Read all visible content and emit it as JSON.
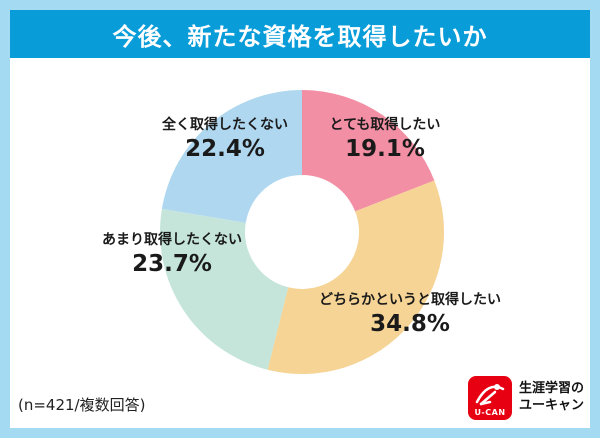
{
  "title_bar": {
    "title": "今後、新たな資格を取得したいか"
  },
  "footnote": "(n=421/複数回答)",
  "brand": {
    "mark_text": "U-CAN",
    "line1": "生涯学習の",
    "line2": "ユーキャン",
    "mark_color": "#e60012"
  },
  "colors": {
    "frame": "#a5dbf2",
    "title_bar": "#089cd8",
    "background": "#ffffff"
  },
  "chart_data": {
    "type": "pie",
    "donut": true,
    "title": "今後、新たな資格を取得したいか",
    "unit": "%",
    "start_angle_deg": 0,
    "direction": "clockwise",
    "legend_position": "labels-around-chart",
    "categories": [
      "とても取得したい",
      "どちらかというと取得したい",
      "あまり取得したくない",
      "全く取得したくない"
    ],
    "values": [
      19.1,
      34.8,
      23.7,
      22.4
    ],
    "segments": [
      {
        "label": "とても取得したい",
        "value": 19.1,
        "pct_label": "19.1%",
        "color": "#f28fa4"
      },
      {
        "label": "どちらかというと取得したい",
        "value": 34.8,
        "pct_label": "34.8%",
        "color": "#f5d495"
      },
      {
        "label": "あまり取得したくない",
        "value": 23.7,
        "pct_label": "23.7%",
        "color": "#c5e5db"
      },
      {
        "label": "全く取得したくない",
        "value": 22.4,
        "pct_label": "22.4%",
        "color": "#afd8f0"
      }
    ]
  }
}
